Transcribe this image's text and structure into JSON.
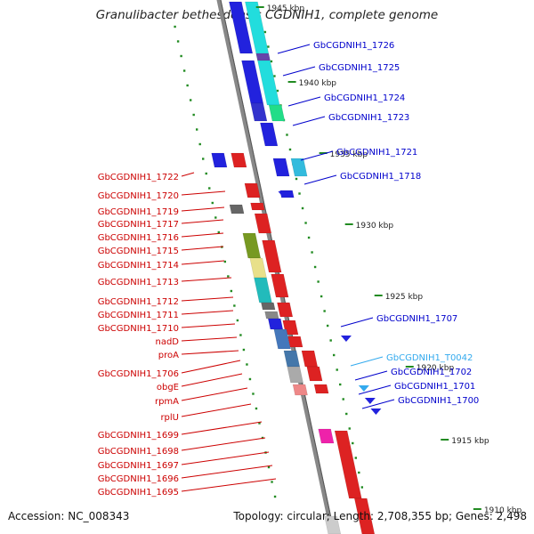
{
  "title": "Granulibacter bethesdensis CGDNIH1, complete genome",
  "footer": {
    "accession": "Accession: NC_008343",
    "topology": "Topology: circular; Length: 2,708,355 bp; Genes: 2,498"
  },
  "colors": {
    "left_label": "#cc0000",
    "right_label": "#0000cc",
    "trna_label": "#33aaee",
    "backbone": "#888888",
    "dots": "#228b22"
  },
  "scale_labels": [
    "1945 kbp",
    "1940 kbp",
    "1935 kbp",
    "1930 kbp",
    "1925 kbp",
    "1920 kbp",
    "1915 kbp",
    "1910 kbp"
  ],
  "left_labels": [
    "GbCGDNIH1_1722",
    "GbCGDNIH1_1720",
    "GbCGDNIH1_1719",
    "GbCGDNIH1_1717",
    "GbCGDNIH1_1716",
    "GbCGDNIH1_1715",
    "GbCGDNIH1_1714",
    "GbCGDNIH1_1713",
    "GbCGDNIH1_1712",
    "GbCGDNIH1_1711",
    "GbCGDNIH1_1710",
    "nadD",
    "proA",
    "GbCGDNIH1_1706",
    "obgE",
    "rpmA",
    "rplU",
    "GbCGDNIH1_1699",
    "GbCGDNIH1_1698",
    "GbCGDNIH1_1697",
    "GbCGDNIH1_1696",
    "GbCGDNIH1_1695"
  ],
  "right_labels": [
    "GbCGDNIH1_1726",
    "GbCGDNIH1_1725",
    "GbCGDNIH1_1724",
    "GbCGDNIH1_1723",
    "GbCGDNIH1_1721",
    "GbCGDNIH1_1718",
    "GbCGDNIH1_1707",
    "GbCGDNIH1_T0042",
    "GbCGDNIH1_1702",
    "GbCGDNIH1_1701",
    "GbCGDNIH1_1700"
  ]
}
